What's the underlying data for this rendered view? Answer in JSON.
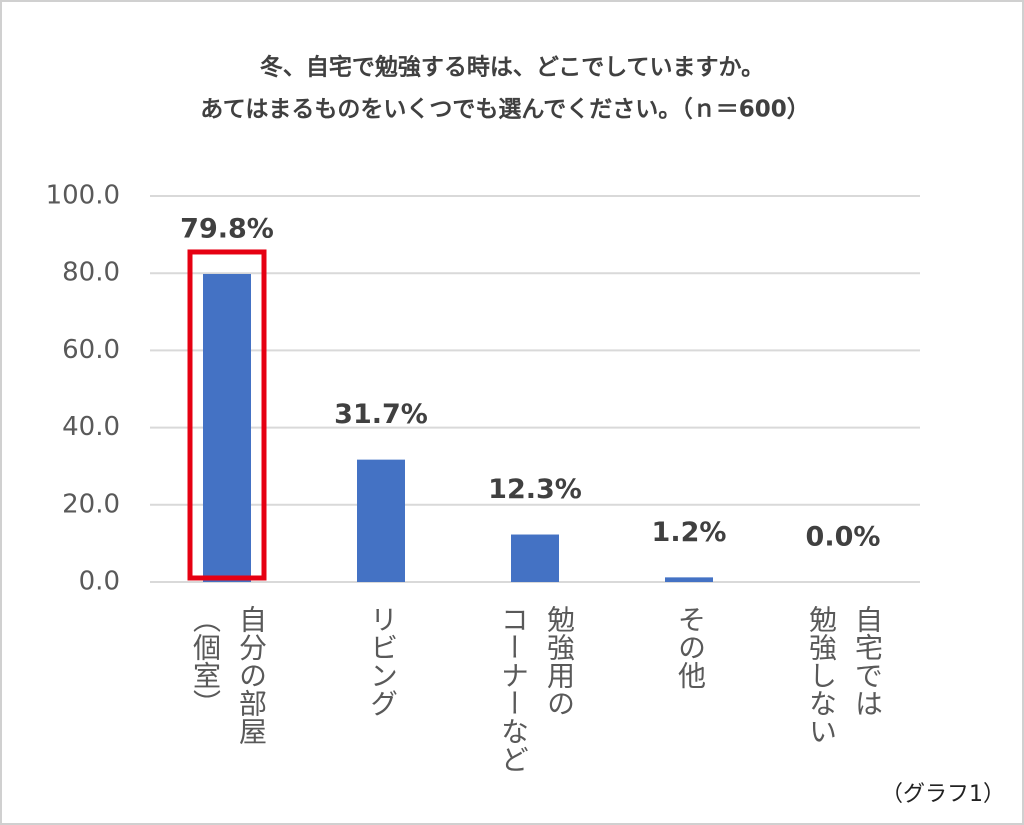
{
  "chart_data": {
    "type": "bar",
    "title": [
      "冬、自宅で勉強する時は、どこでしていますか。",
      "あてはまるものをいくつでも選んでください。（ｎ＝600）"
    ],
    "categories": [
      [
        "自分の部屋",
        "（個室）"
      ],
      [
        "リビング"
      ],
      [
        "勉強用の",
        "コーナーなど"
      ],
      [
        "その他"
      ],
      [
        "自宅では",
        "勉強しない"
      ]
    ],
    "values": [
      79.8,
      31.7,
      12.3,
      1.2,
      0.0
    ],
    "value_labels": [
      "79.8%",
      "31.7%",
      "12.3%",
      "1.2%",
      "0.0%"
    ],
    "color": "#4472c4",
    "highlight_index": 0,
    "highlight_color": "#e60012",
    "ylim": [
      0,
      100
    ],
    "yticks": [
      {
        "value": 0,
        "label": "0.0"
      },
      {
        "value": 20,
        "label": "20.0"
      },
      {
        "value": 40,
        "label": "40.0"
      },
      {
        "value": 60,
        "label": "60.0"
      },
      {
        "value": 80,
        "label": "80.0"
      },
      {
        "value": 100,
        "label": "100.0"
      }
    ],
    "grid": true,
    "annotation": "（グラフ1）"
  }
}
